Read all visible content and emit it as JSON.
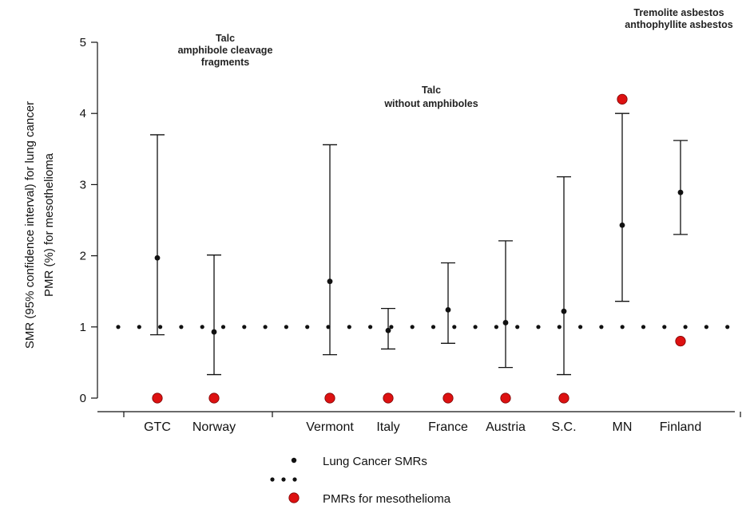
{
  "chart_data": {
    "type": "scatter",
    "title": "",
    "ylabel_lines": [
      "SMR (95% confidence interval) for lung cancer",
      "PMR (%) for mesothelioma"
    ],
    "ylim": [
      0,
      5
    ],
    "yticks": [
      "0",
      "1",
      "2",
      "3",
      "4",
      "5"
    ],
    "reference_line": 1,
    "grid": false,
    "categories": [
      {
        "name": "GTC",
        "label": "GTC"
      },
      {
        "name": "Norway",
        "label": "Norway"
      },
      {
        "name": "Vermont",
        "label": "Vermont"
      },
      {
        "name": "Italy",
        "label": "Italy"
      },
      {
        "name": "France",
        "label": "France"
      },
      {
        "name": "Austria",
        "label": "Austria"
      },
      {
        "name": "SC",
        "label": "S.C."
      },
      {
        "name": "MN",
        "label": "MN"
      },
      {
        "name": "Finland",
        "label": "Finland"
      }
    ],
    "series": [
      {
        "name": "Lung Cancer SMRs",
        "color": "#111111",
        "values": [
          1.97,
          0.93,
          1.64,
          0.95,
          1.24,
          1.06,
          1.22,
          2.43,
          2.89
        ],
        "ci_low": [
          0.89,
          0.33,
          0.61,
          0.69,
          0.77,
          0.43,
          0.33,
          1.36,
          2.3
        ],
        "ci_high": [
          3.7,
          2.01,
          3.56,
          1.26,
          1.9,
          2.21,
          3.11,
          4.0,
          3.62
        ]
      },
      {
        "name": "PMRs for mesothelioma",
        "color": "#dd1111",
        "values": [
          0,
          0,
          0,
          0,
          0,
          0,
          0,
          4.2,
          0.8
        ]
      }
    ],
    "annotations": [
      {
        "name": "talc-amphibole",
        "lines": [
          "Talc",
          "amphibole cleavage",
          "fragments"
        ]
      },
      {
        "name": "talc-no-amphiboles",
        "lines": [
          "Talc",
          "without amphiboles"
        ]
      },
      {
        "name": "tremolite",
        "lines": [
          "Tremolite asbestos",
          "anthophyllite asbestos"
        ]
      }
    ],
    "legend": {
      "position": "bottom",
      "entries": [
        {
          "key": "smr",
          "label": "Lung Cancer SMRs"
        },
        {
          "key": "pmr",
          "label": "PMRs for mesothelioma"
        }
      ]
    }
  }
}
